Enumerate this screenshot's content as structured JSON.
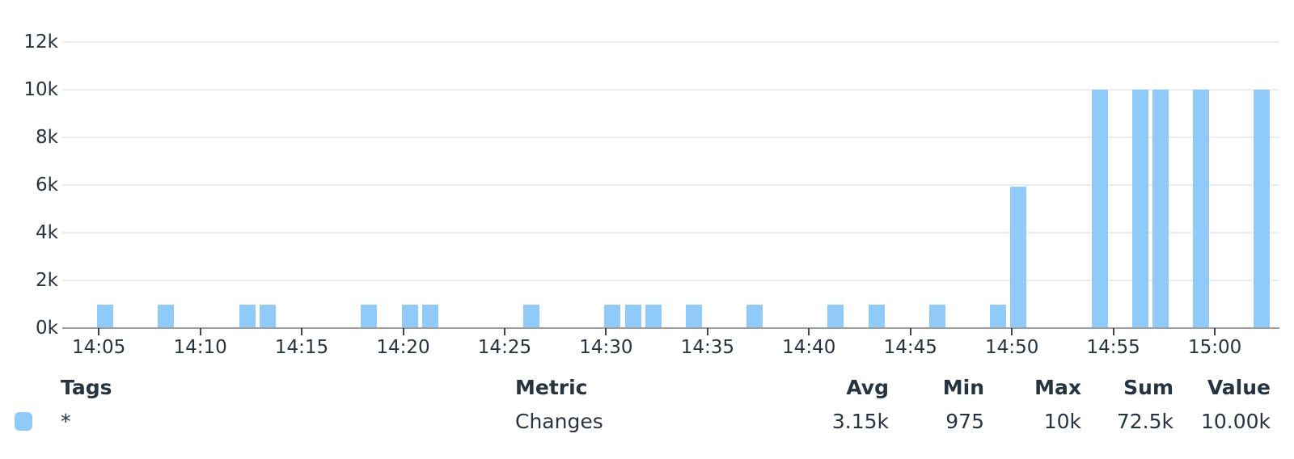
{
  "chart_data": {
    "type": "bar",
    "title": "",
    "xlabel": "",
    "ylabel": "",
    "grid": "horizontal",
    "legend_position": "bottom-table",
    "x_axis": {
      "ticks": [
        "14:05",
        "14:10",
        "14:15",
        "14:20",
        "14:25",
        "14:30",
        "14:35",
        "14:40",
        "14:45",
        "14:50",
        "14:55",
        "15:00"
      ],
      "domain": [
        "14:03",
        "15:03"
      ]
    },
    "y_axis": {
      "ticks": [
        {
          "label": "0k",
          "value": 0
        },
        {
          "label": "2k",
          "value": 2000
        },
        {
          "label": "4k",
          "value": 4000
        },
        {
          "label": "6k",
          "value": 6000
        },
        {
          "label": "8k",
          "value": 8000
        },
        {
          "label": "10k",
          "value": 10000
        },
        {
          "label": "12k",
          "value": 12000
        }
      ],
      "ylim": [
        0,
        12000
      ]
    },
    "series": [
      {
        "name": "Changes",
        "color": "#90caf9",
        "points": [
          {
            "time": "14:05",
            "value": 975
          },
          {
            "time": "14:08",
            "value": 975
          },
          {
            "time": "14:12",
            "value": 975
          },
          {
            "time": "14:13",
            "value": 975
          },
          {
            "time": "14:18",
            "value": 975
          },
          {
            "time": "14:20",
            "value": 975
          },
          {
            "time": "14:21",
            "value": 975
          },
          {
            "time": "14:26",
            "value": 975
          },
          {
            "time": "14:30",
            "value": 975
          },
          {
            "time": "14:31",
            "value": 975
          },
          {
            "time": "14:32",
            "value": 975
          },
          {
            "time": "14:34",
            "value": 975
          },
          {
            "time": "14:37",
            "value": 975
          },
          {
            "time": "14:41",
            "value": 975
          },
          {
            "time": "14:43",
            "value": 975
          },
          {
            "time": "14:46",
            "value": 975
          },
          {
            "time": "14:49",
            "value": 975
          },
          {
            "time": "14:50",
            "value": 5925
          },
          {
            "time": "14:54",
            "value": 10000
          },
          {
            "time": "14:56",
            "value": 10000
          },
          {
            "time": "14:57",
            "value": 10000
          },
          {
            "time": "14:59",
            "value": 10000
          },
          {
            "time": "15:02",
            "value": 10000
          }
        ]
      }
    ]
  },
  "legend": {
    "headers": {
      "tags": "Tags",
      "metric": "Metric",
      "avg": "Avg",
      "min": "Min",
      "max": "Max",
      "sum": "Sum",
      "value": "Value"
    },
    "rows": [
      {
        "swatch_color": "#90caf9",
        "tags": "*",
        "metric": "Changes",
        "avg": "3.15k",
        "min": "975",
        "max": "10k",
        "sum": "72.5k",
        "value": "10.00k"
      }
    ]
  }
}
